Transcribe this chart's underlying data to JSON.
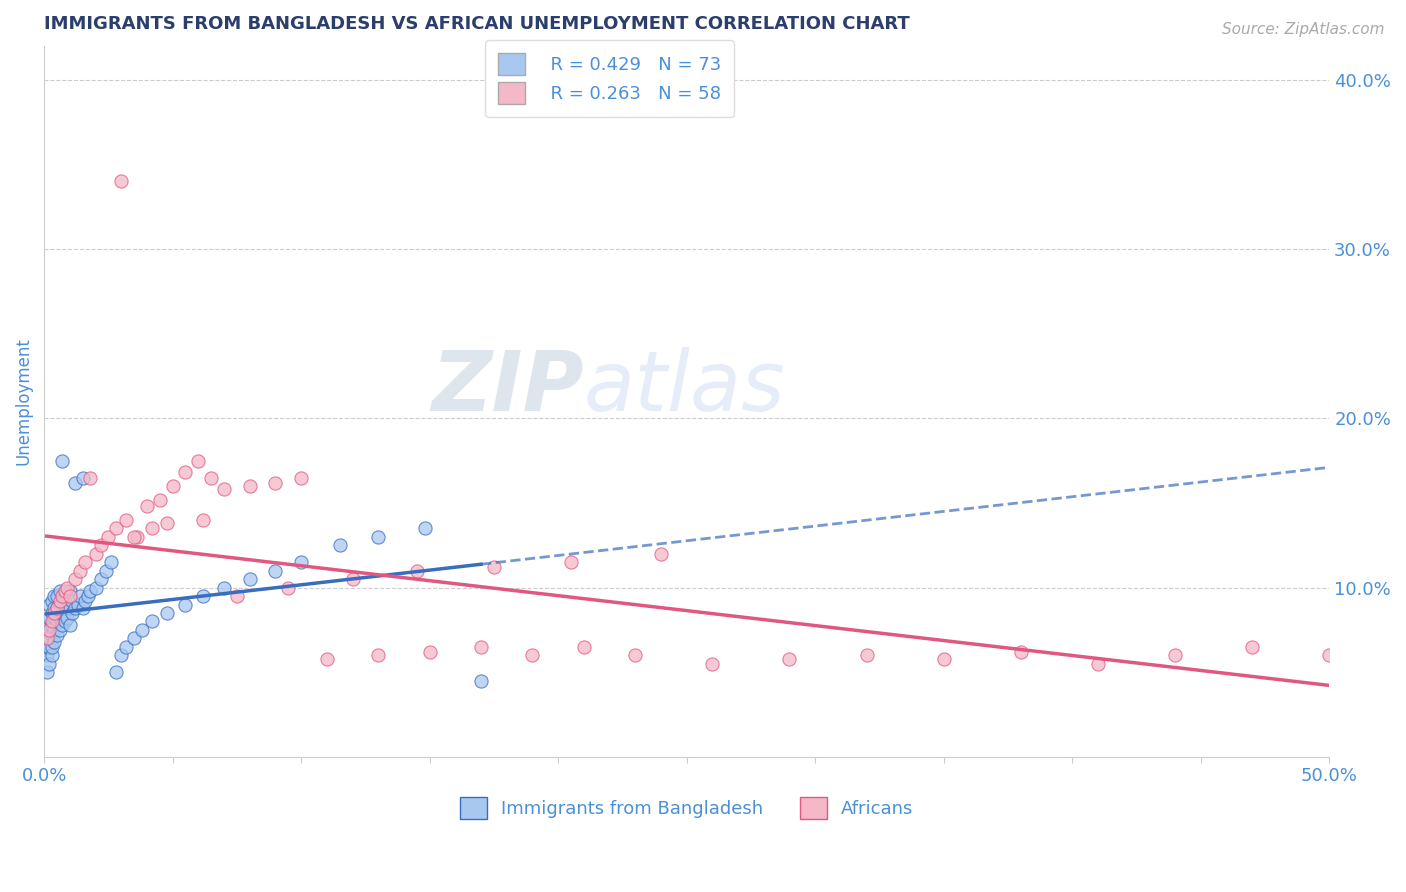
{
  "title": "IMMIGRANTS FROM BANGLADESH VS AFRICAN UNEMPLOYMENT CORRELATION CHART",
  "source": "Source: ZipAtlas.com",
  "ylabel": "Unemployment",
  "xlim": [
    0.0,
    0.5
  ],
  "ylim": [
    0.0,
    0.42
  ],
  "xticks": [
    0.0,
    0.05,
    0.1,
    0.15,
    0.2,
    0.25,
    0.3,
    0.35,
    0.4,
    0.45,
    0.5
  ],
  "ytick_labels_right": [
    "10.0%",
    "20.0%",
    "30.0%",
    "40.0%"
  ],
  "yticks_right": [
    0.1,
    0.2,
    0.3,
    0.4
  ],
  "series1_label": "Immigrants from Bangladesh",
  "series2_label": "Africans",
  "series1_R": "R = 0.429",
  "series1_N": "N = 73",
  "series2_R": "R = 0.263",
  "series2_N": "N = 58",
  "series1_color": "#a8c8f0",
  "series2_color": "#f5b8c8",
  "trend1_color": "#3a6dbf",
  "trend2_color": "#e05880",
  "background_color": "#ffffff",
  "grid_color": "#cccccc",
  "title_color": "#2c3e6b",
  "axis_label_color": "#4a90d9",
  "watermark_zip": "ZIP",
  "watermark_atlas": "atlas",
  "series1_x": [
    0.001,
    0.001,
    0.001,
    0.001,
    0.001,
    0.002,
    0.002,
    0.002,
    0.002,
    0.002,
    0.002,
    0.003,
    0.003,
    0.003,
    0.003,
    0.003,
    0.003,
    0.004,
    0.004,
    0.004,
    0.004,
    0.004,
    0.005,
    0.005,
    0.005,
    0.005,
    0.006,
    0.006,
    0.006,
    0.006,
    0.007,
    0.007,
    0.007,
    0.008,
    0.008,
    0.008,
    0.009,
    0.009,
    0.01,
    0.01,
    0.01,
    0.011,
    0.011,
    0.012,
    0.012,
    0.013,
    0.014,
    0.015,
    0.015,
    0.016,
    0.017,
    0.018,
    0.02,
    0.022,
    0.024,
    0.026,
    0.028,
    0.03,
    0.032,
    0.035,
    0.038,
    0.042,
    0.048,
    0.055,
    0.062,
    0.07,
    0.08,
    0.09,
    0.1,
    0.115,
    0.13,
    0.148,
    0.17
  ],
  "series1_y": [
    0.05,
    0.06,
    0.065,
    0.07,
    0.075,
    0.055,
    0.065,
    0.07,
    0.078,
    0.082,
    0.09,
    0.06,
    0.065,
    0.072,
    0.078,
    0.085,
    0.092,
    0.068,
    0.075,
    0.082,
    0.088,
    0.095,
    0.072,
    0.08,
    0.088,
    0.095,
    0.075,
    0.082,
    0.09,
    0.098,
    0.078,
    0.085,
    0.175,
    0.08,
    0.088,
    0.095,
    0.082,
    0.09,
    0.078,
    0.088,
    0.098,
    0.085,
    0.092,
    0.088,
    0.162,
    0.09,
    0.095,
    0.088,
    0.165,
    0.092,
    0.095,
    0.098,
    0.1,
    0.105,
    0.11,
    0.115,
    0.05,
    0.06,
    0.065,
    0.07,
    0.075,
    0.08,
    0.085,
    0.09,
    0.095,
    0.1,
    0.105,
    0.11,
    0.115,
    0.125,
    0.13,
    0.135,
    0.045
  ],
  "series2_x": [
    0.001,
    0.002,
    0.003,
    0.004,
    0.005,
    0.006,
    0.007,
    0.008,
    0.009,
    0.01,
    0.012,
    0.014,
    0.016,
    0.018,
    0.02,
    0.022,
    0.025,
    0.028,
    0.032,
    0.036,
    0.04,
    0.045,
    0.05,
    0.055,
    0.06,
    0.065,
    0.07,
    0.08,
    0.09,
    0.1,
    0.11,
    0.13,
    0.15,
    0.17,
    0.19,
    0.21,
    0.23,
    0.26,
    0.29,
    0.32,
    0.35,
    0.38,
    0.41,
    0.44,
    0.47,
    0.5,
    0.035,
    0.042,
    0.048,
    0.062,
    0.075,
    0.095,
    0.12,
    0.145,
    0.175,
    0.205,
    0.24,
    0.03
  ],
  "series2_y": [
    0.07,
    0.075,
    0.08,
    0.085,
    0.088,
    0.092,
    0.095,
    0.098,
    0.1,
    0.095,
    0.105,
    0.11,
    0.115,
    0.165,
    0.12,
    0.125,
    0.13,
    0.135,
    0.14,
    0.13,
    0.148,
    0.152,
    0.16,
    0.168,
    0.175,
    0.165,
    0.158,
    0.16,
    0.162,
    0.165,
    0.058,
    0.06,
    0.062,
    0.065,
    0.06,
    0.065,
    0.06,
    0.055,
    0.058,
    0.06,
    0.058,
    0.062,
    0.055,
    0.06,
    0.065,
    0.06,
    0.13,
    0.135,
    0.138,
    0.14,
    0.095,
    0.1,
    0.105,
    0.11,
    0.112,
    0.115,
    0.12,
    0.34
  ]
}
